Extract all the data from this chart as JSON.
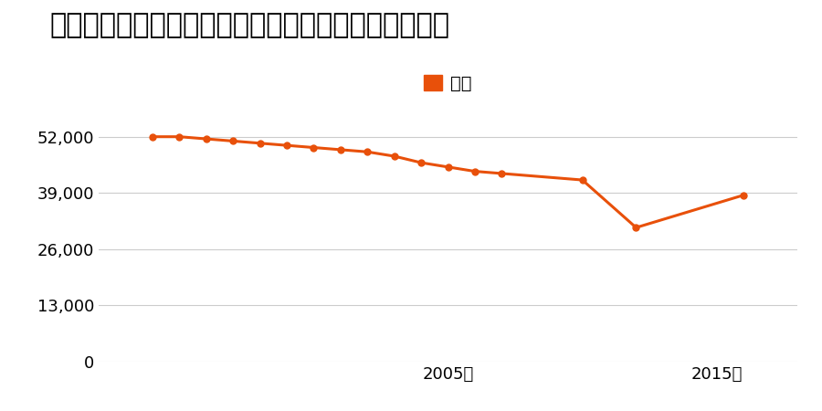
{
  "title": "福島県いわき市平上荒川字桜町５９番１内の地価推移",
  "legend_label": "価格",
  "years": [
    1994,
    1995,
    1996,
    1997,
    1998,
    1999,
    2000,
    2001,
    2002,
    2003,
    2004,
    2005,
    2006,
    2007,
    2010,
    2012,
    2016
  ],
  "values": [
    52000,
    52000,
    51500,
    51000,
    50500,
    50000,
    49500,
    49000,
    48500,
    47500,
    46000,
    45000,
    44000,
    43500,
    42000,
    31000,
    38500
  ],
  "line_color": "#e8500a",
  "background_color": "#ffffff",
  "yticks": [
    0,
    13000,
    26000,
    39000,
    52000
  ],
  "xtick_labels": [
    "2005年",
    "2015年"
  ],
  "xtick_positions": [
    2005,
    2015
  ],
  "ylim": [
    0,
    57000
  ],
  "xlim": [
    1992.0,
    2018.0
  ],
  "title_fontsize": 22,
  "legend_fontsize": 14,
  "tick_fontsize": 13,
  "grid_color": "#cccccc"
}
